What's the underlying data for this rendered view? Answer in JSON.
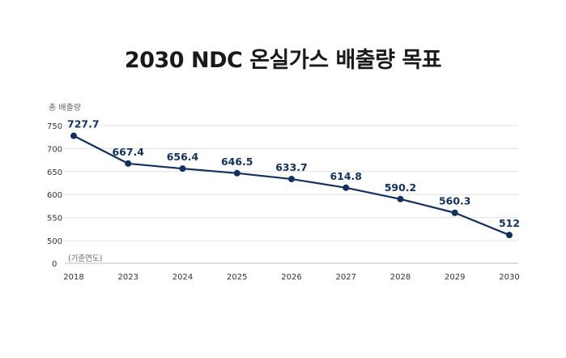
{
  "chart_data": {
    "type": "line",
    "title": "2030 NDC 온실가스 배출량 목표",
    "ylabel": "총 배출량",
    "base_note": "(기준연도)",
    "categories": [
      "2018",
      "2023",
      "2024",
      "2025",
      "2026",
      "2027",
      "2028",
      "2029",
      "2030"
    ],
    "values": [
      727.7,
      667.4,
      656.4,
      646.5,
      633.7,
      614.8,
      590.2,
      560.3,
      512
    ],
    "value_labels": [
      "727.7",
      "667.4",
      "656.4",
      "646.5",
      "633.7",
      "614.8",
      "590.2",
      "560.3",
      "512"
    ],
    "yticks": [
      "750",
      "700",
      "650",
      "600",
      "550",
      "500",
      "0"
    ],
    "ytick_values": [
      750,
      700,
      650,
      600,
      550,
      500
    ],
    "ylim": [
      500,
      750
    ],
    "axis_break": true,
    "grid": true,
    "line_color": "#13315c"
  }
}
